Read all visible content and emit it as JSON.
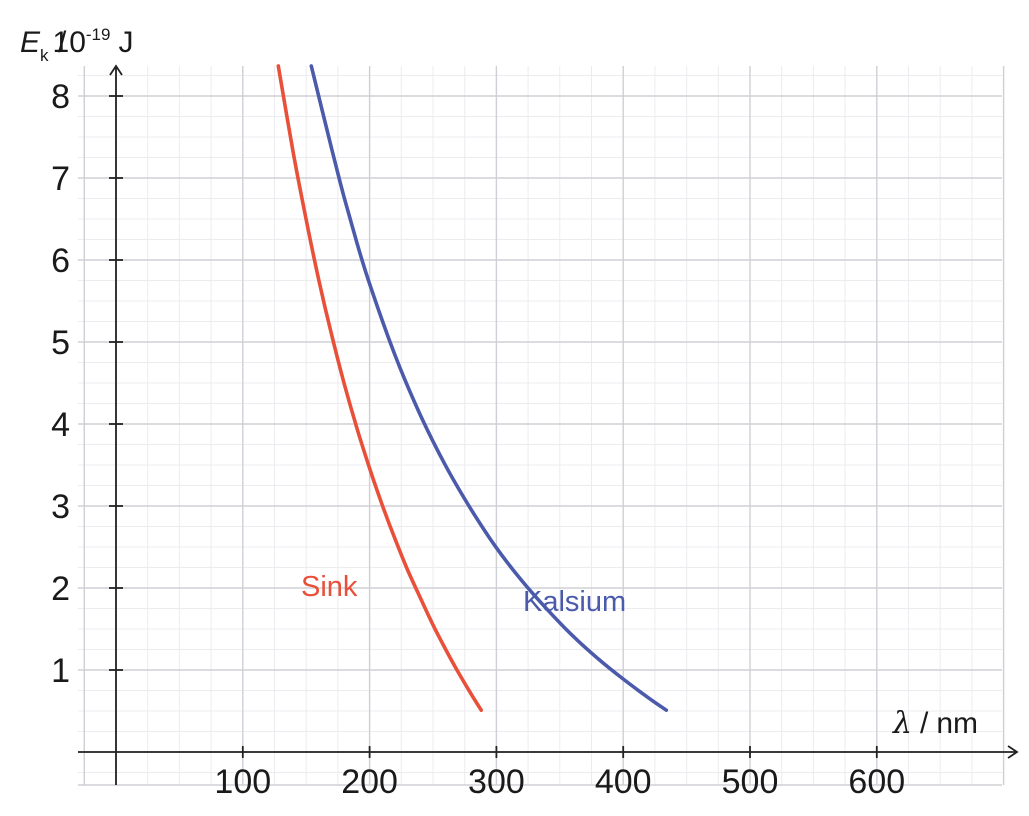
{
  "chart_data": {
    "type": "line",
    "title": "",
    "xlabel": {
      "symbol": "λ",
      "unit": "nm"
    },
    "ylabel": {
      "symbol": "E",
      "subscript": "k",
      "unit_base": "10",
      "unit_exp": "-19",
      "unit": "J"
    },
    "xlim": [
      -150,
      700
    ],
    "ylim": [
      0,
      8.4
    ],
    "xticks": [
      100,
      200,
      300,
      400,
      500,
      600
    ],
    "yticks": [
      1,
      2,
      3,
      4,
      5,
      6,
      7,
      8
    ],
    "grid": true,
    "series": [
      {
        "name": "Sink",
        "color": "#e8503a",
        "x": [
          128,
          140,
          150,
          160,
          170,
          180,
          190,
          200,
          210,
          220,
          230,
          240,
          250,
          260,
          270,
          280,
          288
        ],
        "y": [
          8.4,
          7.29,
          6.49,
          5.75,
          5.09,
          4.49,
          3.95,
          3.46,
          3.01,
          2.6,
          2.22,
          1.88,
          1.55,
          1.25,
          0.97,
          0.71,
          0.51
        ]
      },
      {
        "name": "Kalsium",
        "color": "#4b5aab",
        "x": [
          154,
          170,
          180,
          190,
          200,
          220,
          240,
          260,
          280,
          300,
          320,
          340,
          360,
          380,
          400,
          420,
          434
        ],
        "y": [
          8.4,
          7.36,
          6.76,
          6.21,
          5.71,
          4.84,
          4.11,
          3.49,
          2.96,
          2.49,
          2.09,
          1.74,
          1.42,
          1.14,
          0.89,
          0.66,
          0.51
        ]
      }
    ]
  }
}
